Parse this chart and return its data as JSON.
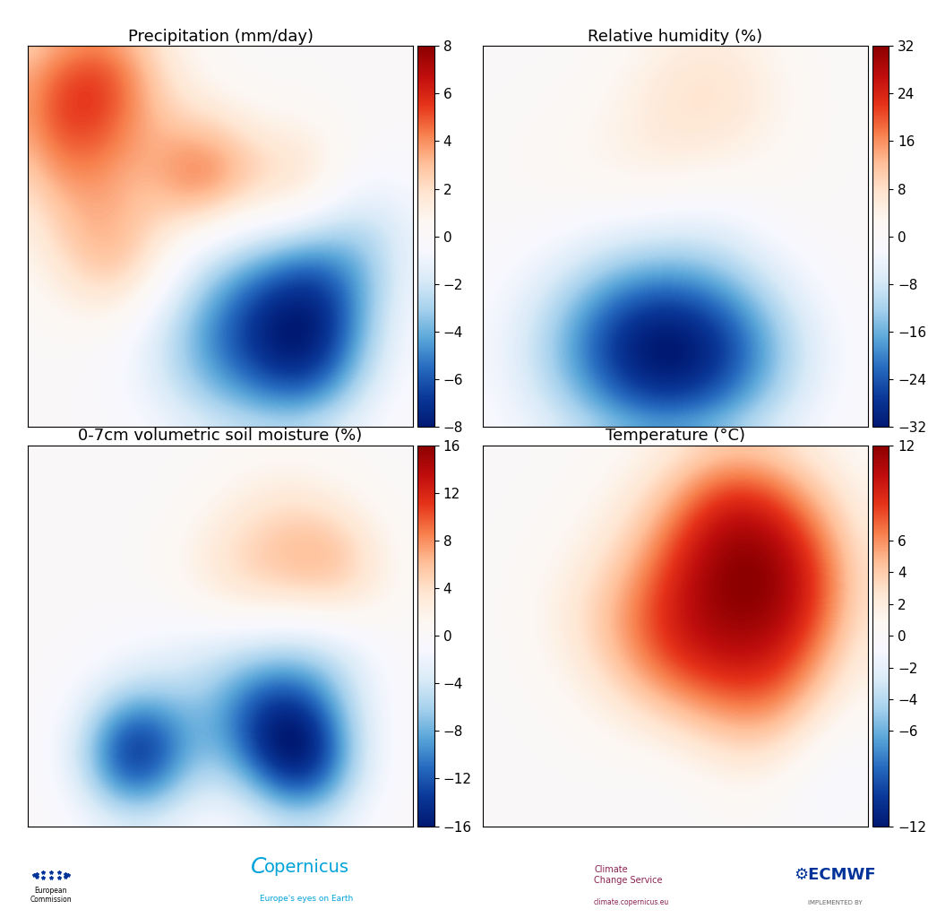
{
  "titles": [
    "Precipitation (mm/day)",
    "Relative humidity (%)",
    "0-7cm volumetric soil moisture (%)",
    "Temperature (°C)"
  ],
  "colorbars": [
    {
      "vmin": -8,
      "vmax": 8,
      "ticks": [
        -8,
        -6,
        -4,
        -2,
        0,
        2,
        4,
        6,
        8
      ]
    },
    {
      "vmin": -32,
      "vmax": 32,
      "ticks": [
        -32,
        -24,
        -16,
        -8,
        0,
        8,
        16,
        24,
        32
      ]
    },
    {
      "vmin": -16,
      "vmax": 16,
      "ticks": [
        -16,
        -12,
        -8,
        -4,
        0,
        4,
        8,
        12,
        16
      ]
    },
    {
      "vmin": -12,
      "vmax": 12,
      "ticks": [
        -12,
        -6,
        -4,
        -2,
        0,
        2,
        4,
        6,
        12
      ]
    }
  ],
  "background_color": "#ffffff",
  "title_fontsize": 13,
  "colorbar_fontsize": 11,
  "lon_min": -25,
  "lon_max": 45,
  "lat_min": 30,
  "lat_max": 75,
  "nx": 300,
  "ny": 270
}
